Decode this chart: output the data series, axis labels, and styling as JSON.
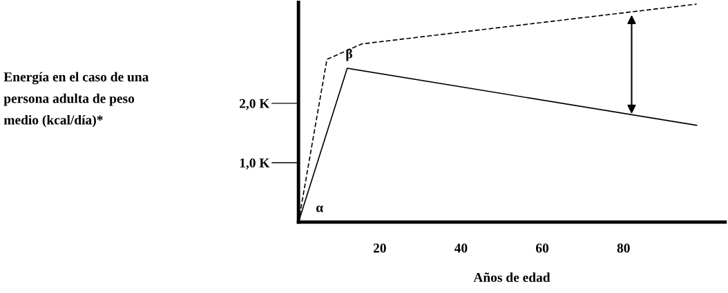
{
  "chart_data": {
    "type": "line",
    "xlabel": "Años de edad",
    "xlim": [
      0,
      105
    ],
    "ylim": [
      0,
      3700
    ],
    "xticks": [
      20,
      40,
      60,
      80
    ],
    "yticks": [
      {
        "value": 1000,
        "label": "1,0 K"
      },
      {
        "value": 2000,
        "label": "2,0 K"
      }
    ],
    "series": [
      {
        "color": "#000000",
        "line_style": "solid",
        "x": [
          0,
          12,
          98
        ],
        "values": [
          0,
          2590,
          1630
        ]
      },
      {
        "color": "#000000",
        "line_style": "dashed",
        "x": [
          0,
          7,
          15.6,
          98
        ],
        "values": [
          0,
          2740,
          3000,
          3670
        ]
      }
    ],
    "annotations": [
      "Energía en el caso de una\npersona adulta de peso\nmedio (kcal/día)*",
      "α",
      "β"
    ],
    "grid": false,
    "legend": false,
    "marker": "none"
  }
}
